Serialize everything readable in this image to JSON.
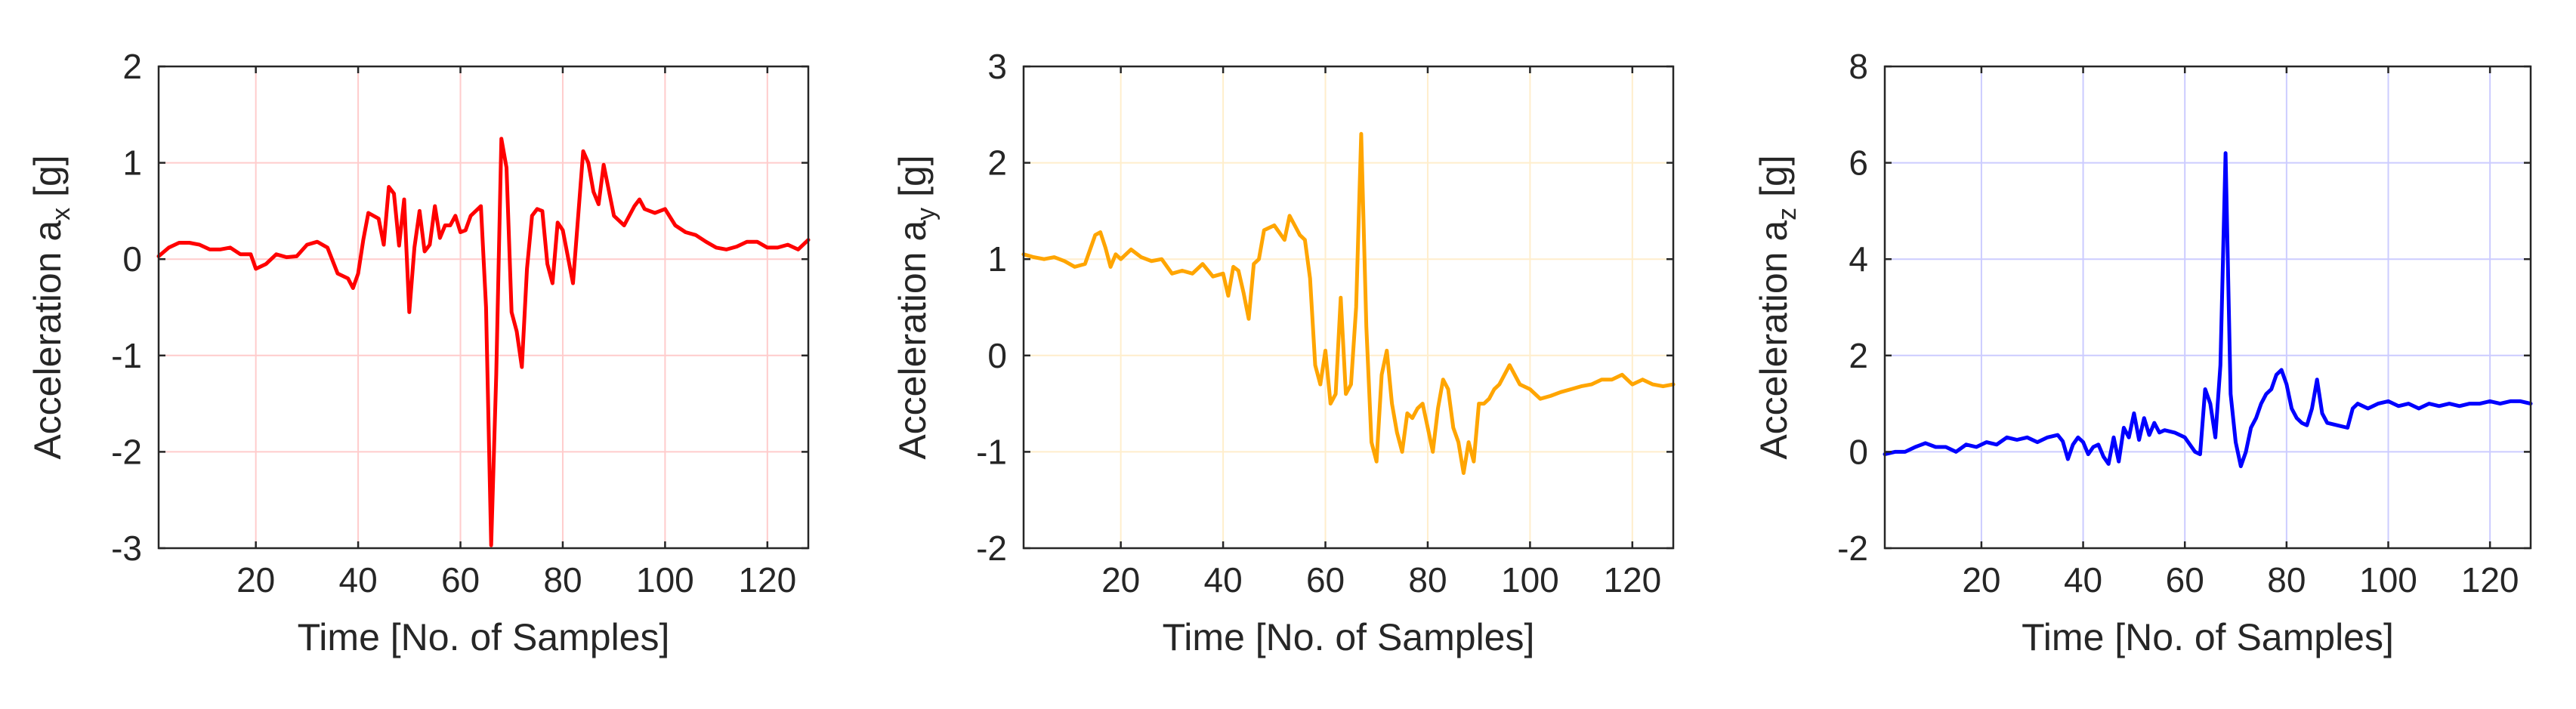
{
  "chart_data": [
    {
      "type": "line",
      "xlabel": "Time [No. of Samples]",
      "ylabel": {
        "base": "Acceleration a",
        "sub": "x",
        "unit": " [g]"
      },
      "xlim": [
        1,
        128
      ],
      "ylim": [
        -3,
        2
      ],
      "xticks": [
        20,
        40,
        60,
        80,
        100,
        120
      ],
      "xtick_labels": [
        "20",
        "40",
        "60",
        "80",
        "100",
        "120"
      ],
      "yticks": [
        -3,
        -2,
        -1,
        0,
        1,
        2
      ],
      "ytick_labels": [
        "-3",
        "-2",
        "-1",
        "0",
        "1",
        "2"
      ],
      "grid": true,
      "color": "#ff0000",
      "grid_color": "#ffcccc",
      "series": [
        {
          "x": [
            1,
            3,
            5,
            7,
            9,
            11,
            13,
            15,
            17,
            19,
            20,
            22,
            24,
            26,
            28,
            30,
            32,
            34,
            36,
            38,
            39,
            40,
            41,
            42,
            44,
            45,
            46,
            47,
            48,
            49,
            50,
            51,
            52,
            53,
            54,
            55,
            56,
            57,
            58,
            59,
            60,
            61,
            62,
            63,
            64,
            65,
            66,
            67,
            68,
            69,
            70,
            71,
            72,
            73,
            74,
            75,
            76,
            77,
            78,
            79,
            80,
            82,
            84,
            85,
            86,
            87,
            88,
            90,
            92,
            94,
            95,
            96,
            97,
            98,
            99,
            100,
            102,
            104,
            106,
            108,
            110,
            112,
            114,
            116,
            118,
            120,
            122,
            124,
            126,
            128
          ],
          "y": [
            0.03,
            0.12,
            0.17,
            0.17,
            0.15,
            0.1,
            0.1,
            0.12,
            0.05,
            0.05,
            -0.1,
            -0.05,
            0.05,
            0.02,
            0.03,
            0.15,
            0.18,
            0.12,
            -0.15,
            -0.2,
            -0.3,
            -0.15,
            0.2,
            0.48,
            0.42,
            0.15,
            0.75,
            0.68,
            0.14,
            0.62,
            -0.55,
            0.12,
            0.5,
            0.08,
            0.15,
            0.55,
            0.22,
            0.35,
            0.35,
            0.45,
            0.28,
            0.3,
            0.45,
            0.5,
            0.55,
            -0.5,
            -2.97,
            -1.2,
            1.25,
            0.95,
            -0.55,
            -0.75,
            -1.12,
            -0.1,
            0.45,
            0.52,
            0.5,
            -0.05,
            -0.25,
            0.38,
            0.3,
            -0.25,
            1.12,
            1.0,
            0.7,
            0.57,
            0.98,
            0.45,
            0.35,
            0.55,
            0.62,
            0.52,
            0.5,
            0.48,
            0.5,
            0.52,
            0.35,
            0.28,
            0.25,
            0.18,
            0.12,
            0.1,
            0.13,
            0.18,
            0.18,
            0.12,
            0.12,
            0.15,
            0.1,
            0.2
          ]
        }
      ]
    },
    {
      "type": "line",
      "xlabel": "Time [No. of Samples]",
      "ylabel": {
        "base": "Acceleration a",
        "sub": "y",
        "unit": " [g]"
      },
      "xlim": [
        1,
        128
      ],
      "ylim": [
        -2,
        3
      ],
      "xticks": [
        20,
        40,
        60,
        80,
        100,
        120
      ],
      "xtick_labels": [
        "20",
        "40",
        "60",
        "80",
        "100",
        "120"
      ],
      "yticks": [
        -2,
        -1,
        0,
        1,
        2,
        3
      ],
      "ytick_labels": [
        "-2",
        "-1",
        "0",
        "1",
        "2",
        "3"
      ],
      "grid": true,
      "color": "#ffa500",
      "grid_color": "#ffeecc",
      "series": [
        {
          "x": [
            1,
            3,
            5,
            7,
            9,
            11,
            13,
            15,
            16,
            17,
            18,
            19,
            20,
            22,
            24,
            26,
            28,
            30,
            32,
            34,
            36,
            38,
            40,
            41,
            42,
            43,
            44,
            45,
            46,
            47,
            48,
            50,
            52,
            53,
            54,
            55,
            56,
            57,
            58,
            59,
            60,
            61,
            62,
            63,
            64,
            65,
            66,
            67,
            68,
            69,
            70,
            71,
            72,
            73,
            74,
            75,
            76,
            77,
            78,
            79,
            80,
            81,
            82,
            83,
            84,
            85,
            86,
            87,
            88,
            89,
            90,
            91,
            92,
            93,
            94,
            96,
            98,
            100,
            102,
            104,
            106,
            108,
            110,
            112,
            114,
            116,
            118,
            120,
            122,
            124,
            126,
            128
          ],
          "y": [
            1.05,
            1.02,
            1.0,
            1.02,
            0.98,
            0.92,
            0.95,
            1.25,
            1.28,
            1.12,
            0.92,
            1.05,
            1.0,
            1.1,
            1.02,
            0.98,
            1.0,
            0.85,
            0.88,
            0.85,
            0.95,
            0.82,
            0.85,
            0.62,
            0.92,
            0.88,
            0.65,
            0.38,
            0.95,
            1.0,
            1.3,
            1.35,
            1.2,
            1.45,
            1.35,
            1.25,
            1.2,
            0.8,
            -0.1,
            -0.3,
            0.05,
            -0.5,
            -0.4,
            0.6,
            -0.4,
            -0.3,
            0.5,
            2.3,
            0.3,
            -0.9,
            -1.1,
            -0.2,
            0.05,
            -0.5,
            -0.8,
            -1.0,
            -0.6,
            -0.65,
            -0.55,
            -0.5,
            -0.75,
            -1.0,
            -0.55,
            -0.25,
            -0.35,
            -0.75,
            -0.9,
            -1.22,
            -0.9,
            -1.1,
            -0.5,
            -0.5,
            -0.45,
            -0.35,
            -0.3,
            -0.1,
            -0.3,
            -0.35,
            -0.45,
            -0.42,
            -0.38,
            -0.35,
            -0.32,
            -0.3,
            -0.25,
            -0.25,
            -0.2,
            -0.3,
            -0.25,
            -0.3,
            -0.32,
            -0.3
          ]
        }
      ]
    },
    {
      "type": "line",
      "xlabel": "Time [No. of Samples]",
      "ylabel": {
        "base": "Acceleration a",
        "sub": "z",
        "unit": " [g]"
      },
      "xlim": [
        1,
        128
      ],
      "ylim": [
        -2,
        8
      ],
      "xticks": [
        20,
        40,
        60,
        80,
        100,
        120
      ],
      "xtick_labels": [
        "20",
        "40",
        "60",
        "80",
        "100",
        "120"
      ],
      "yticks": [
        -2,
        0,
        2,
        4,
        6,
        8
      ],
      "ytick_labels": [
        "-2",
        "0",
        "2",
        "4",
        "6",
        "8"
      ],
      "grid": true,
      "color": "#0000ff",
      "grid_color": "#ccccff",
      "series": [
        {
          "x": [
            1,
            3,
            5,
            7,
            9,
            11,
            13,
            15,
            17,
            19,
            21,
            23,
            25,
            27,
            29,
            31,
            33,
            35,
            36,
            37,
            38,
            39,
            40,
            41,
            42,
            43,
            44,
            45,
            46,
            47,
            48,
            49,
            50,
            51,
            52,
            53,
            54,
            55,
            56,
            58,
            60,
            62,
            63,
            64,
            65,
            66,
            67,
            68,
            69,
            70,
            71,
            72,
            73,
            74,
            75,
            76,
            77,
            78,
            79,
            80,
            81,
            82,
            83,
            84,
            85,
            86,
            87,
            88,
            90,
            92,
            93,
            94,
            96,
            98,
            100,
            102,
            104,
            106,
            108,
            110,
            112,
            114,
            116,
            118,
            120,
            122,
            124,
            126,
            128
          ],
          "y": [
            -0.05,
            0.0,
            0.0,
            0.1,
            0.18,
            0.1,
            0.1,
            0.0,
            0.15,
            0.1,
            0.2,
            0.15,
            0.3,
            0.25,
            0.3,
            0.2,
            0.3,
            0.35,
            0.22,
            -0.15,
            0.15,
            0.3,
            0.2,
            -0.05,
            0.1,
            0.15,
            -0.1,
            -0.25,
            0.3,
            -0.2,
            0.5,
            0.3,
            0.8,
            0.25,
            0.7,
            0.35,
            0.6,
            0.4,
            0.45,
            0.4,
            0.3,
            0.0,
            -0.05,
            1.3,
            1.0,
            0.3,
            1.8,
            6.2,
            1.2,
            0.2,
            -0.3,
            0.0,
            0.5,
            0.7,
            1.0,
            1.2,
            1.3,
            1.6,
            1.7,
            1.4,
            0.9,
            0.7,
            0.6,
            0.55,
            0.9,
            1.5,
            0.8,
            0.6,
            0.55,
            0.5,
            0.9,
            1.0,
            0.9,
            1.0,
            1.05,
            0.95,
            1.0,
            0.9,
            1.0,
            0.95,
            1.0,
            0.95,
            1.0,
            1.0,
            1.05,
            1.0,
            1.05,
            1.05,
            1.0
          ]
        }
      ]
    }
  ]
}
